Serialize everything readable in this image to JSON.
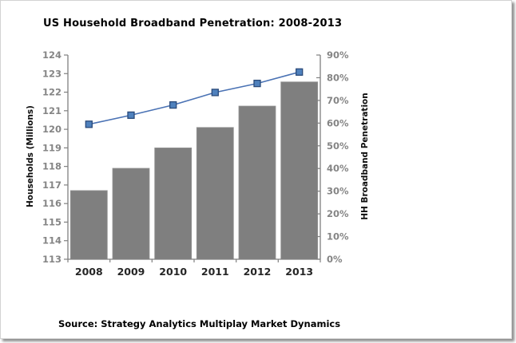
{
  "title": "US Household Broadband Penetration: 2008-2013",
  "source_note": "Source: Strategy Analytics Multiplay Market Dynamics",
  "chart_data": {
    "type": "bar",
    "subtype": "bar-line-combo",
    "title": "US Household Broadband Penetration: 2008-2013",
    "categories": [
      "2008",
      "2009",
      "2010",
      "2011",
      "2012",
      "2013"
    ],
    "series": [
      {
        "name": "Households (Millions)",
        "type": "bar",
        "axis": "left",
        "values": [
          116.7,
          117.9,
          119.0,
          120.1,
          121.25,
          122.55
        ],
        "color": "#7f7f7f",
        "border_color": "#949494"
      },
      {
        "name": "HH Broadband Penetration",
        "type": "line",
        "axis": "right",
        "values": [
          59.5,
          63.5,
          68.0,
          73.5,
          77.5,
          82.5
        ],
        "unit": "%",
        "color": "#4a72b4",
        "marker": "square",
        "marker_fill": "#4f81bd",
        "marker_border": "#2a4a7a"
      }
    ],
    "left_axis": {
      "label": "Households (Millions)",
      "min": 113,
      "max": 124,
      "step": 1,
      "tick_labels": [
        "113",
        "114",
        "115",
        "116",
        "117",
        "118",
        "119",
        "120",
        "121",
        "122",
        "123",
        "124"
      ]
    },
    "right_axis": {
      "label": "HH Broadband Penetration",
      "min": 0,
      "max": 90,
      "step": 10,
      "tick_labels": [
        "0%",
        "10%",
        "20%",
        "30%",
        "40%",
        "50%",
        "60%",
        "70%",
        "80%",
        "90%"
      ]
    },
    "grid": false,
    "legend": "none",
    "plot_bg": "#ffffff",
    "axis_color": "#808080",
    "tick_label_color": "#858585",
    "category_label_color": "#262626"
  }
}
